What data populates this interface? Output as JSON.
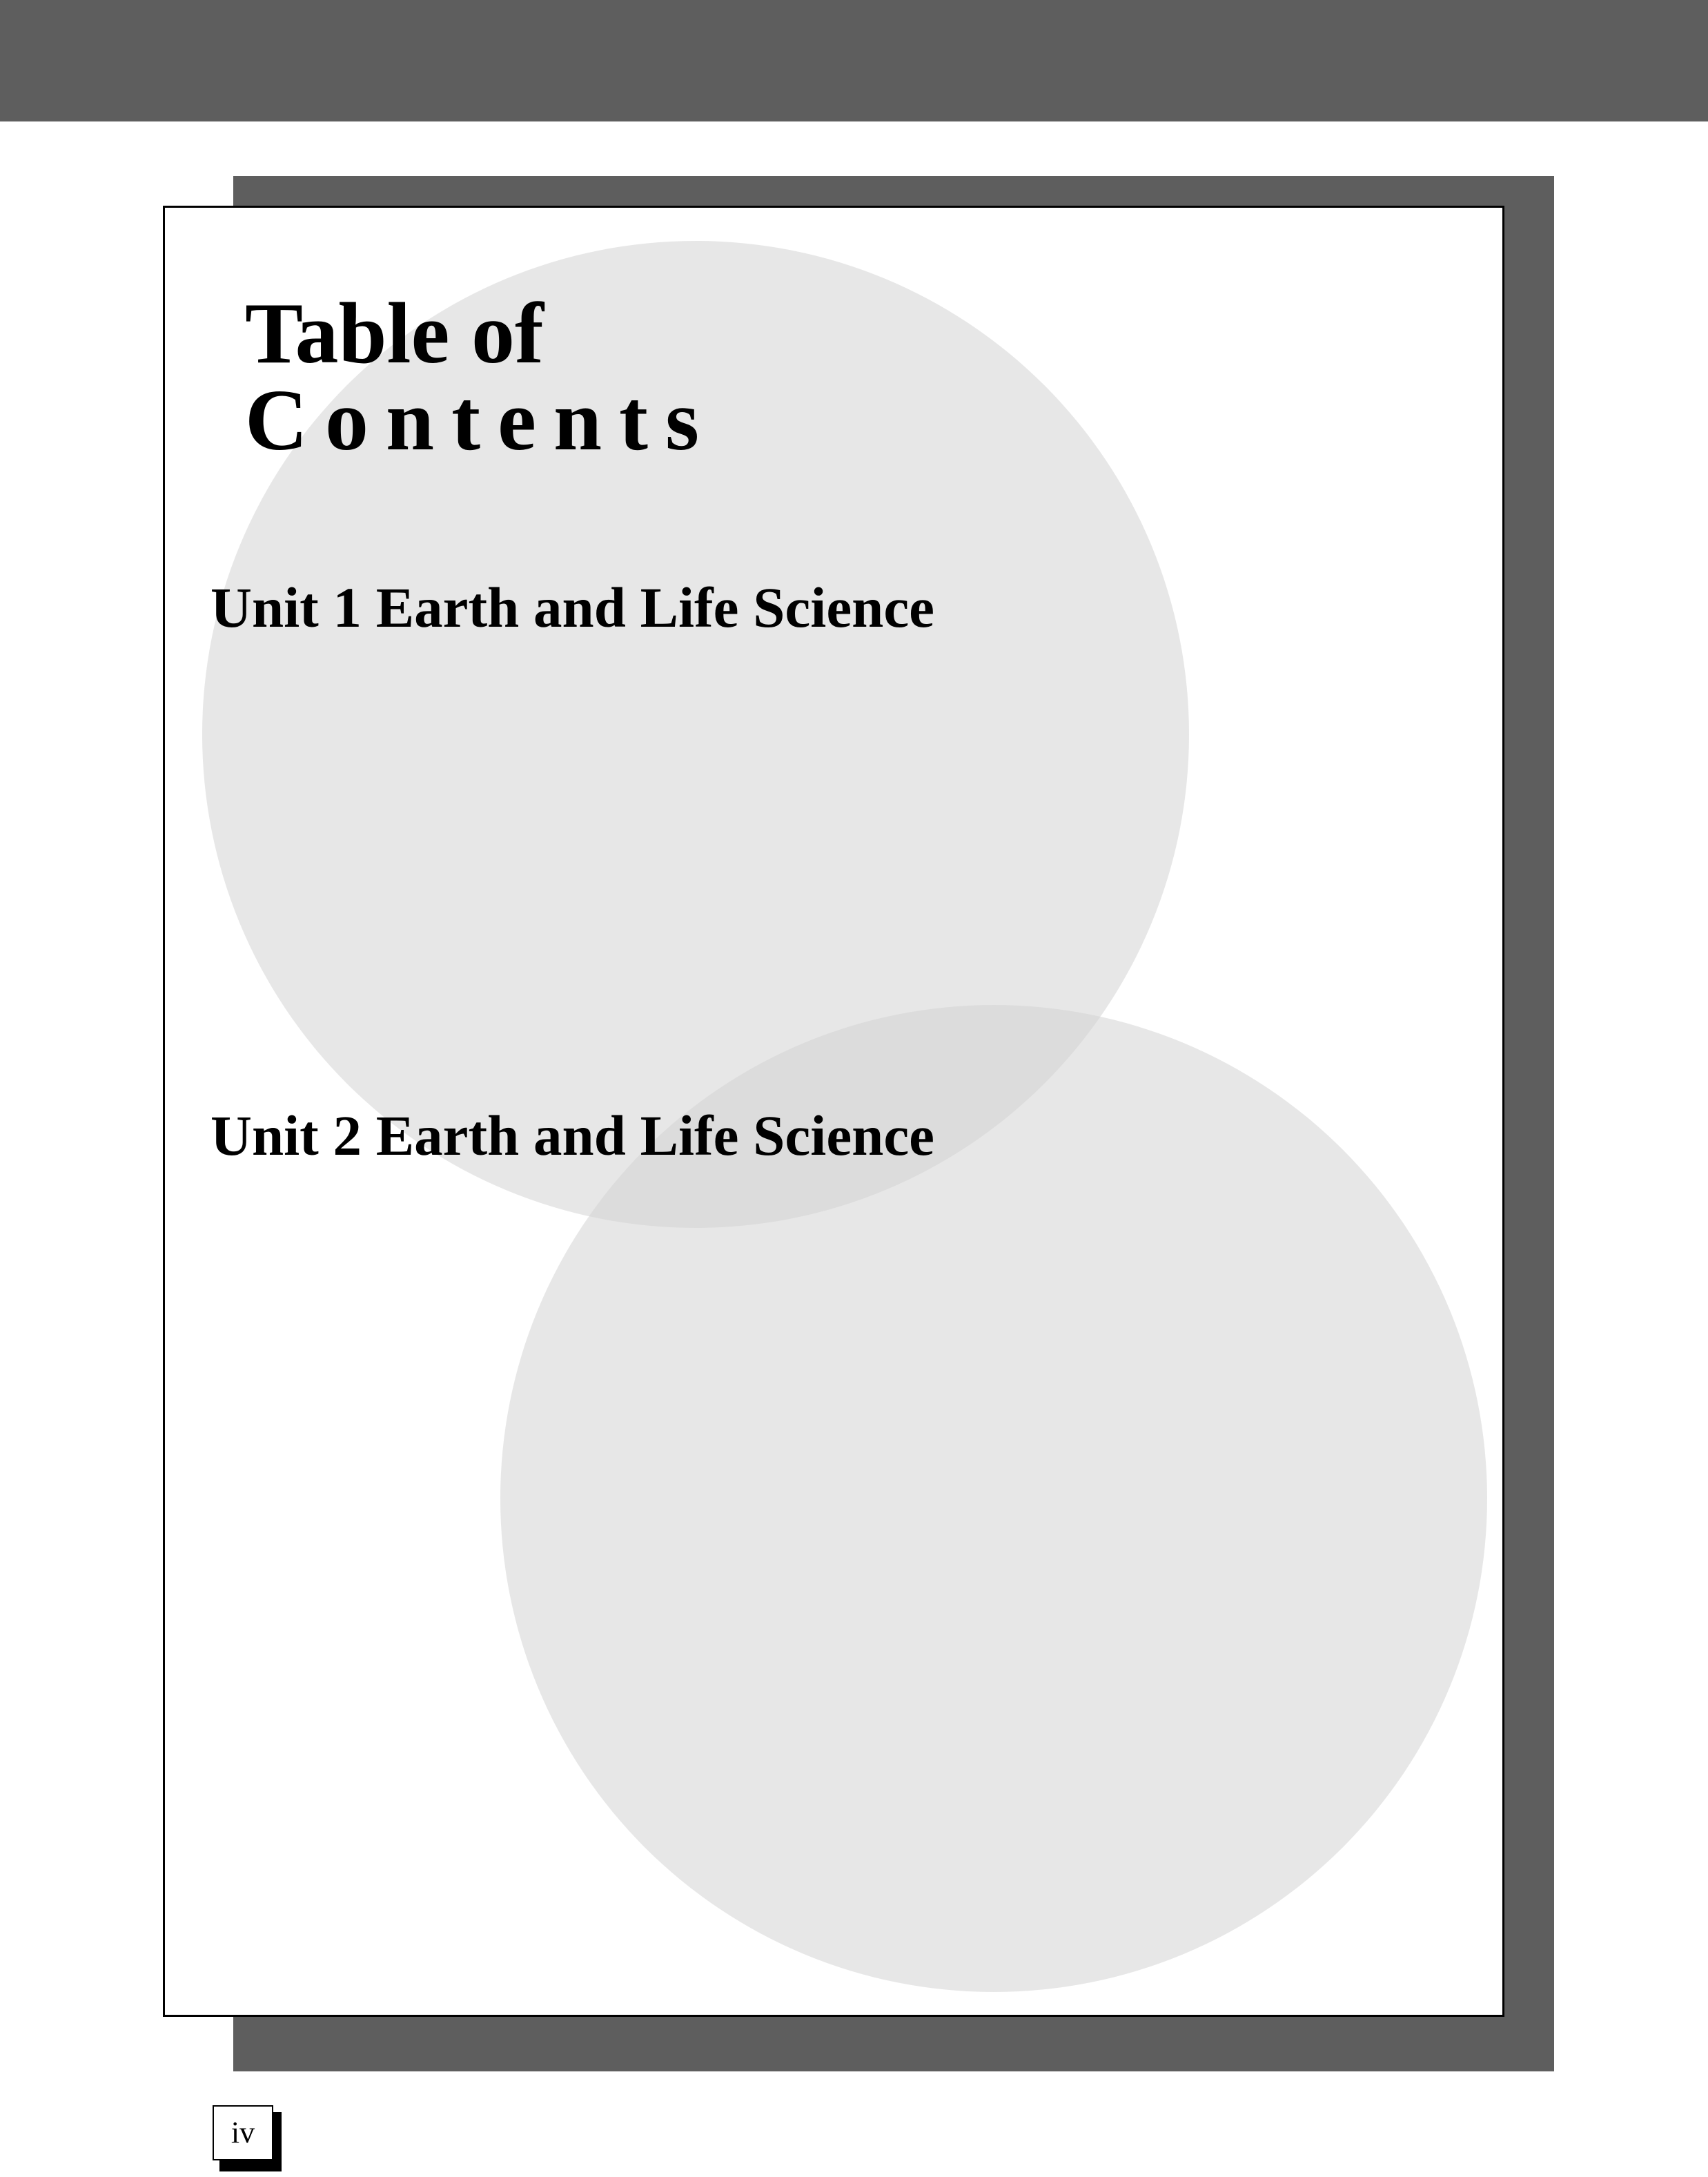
{
  "title": {
    "line1": "Table of",
    "line2": "Contents"
  },
  "units": [
    {
      "label": "Unit 1 Earth and Life Science"
    },
    {
      "label": "Unit 2 Earth and Life Science"
    }
  ],
  "page_number": "iv",
  "colors": {
    "bar": "#5e5e5e",
    "circle": "#e6e6e6",
    "text": "#000000"
  }
}
